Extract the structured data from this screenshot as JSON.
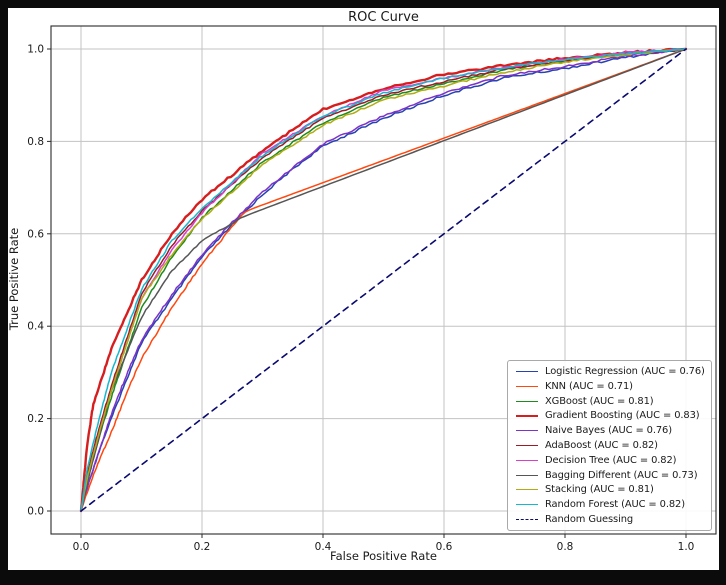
{
  "figure": {
    "title": "ROC Curve",
    "xlabel": "False Positive Rate",
    "ylabel": "True Positive Rate",
    "background": "#ffffff",
    "frame_color": "#0b0b0b",
    "grid_color": "#c3c3c3",
    "spine_color": "#2b2b2b",
    "tick_text_color": "#1a1a1a",
    "x_ticks": [
      "0.0",
      "0.2",
      "0.4",
      "0.6",
      "0.8",
      "1.0"
    ],
    "y_ticks": [
      "0.0",
      "0.2",
      "0.4",
      "0.6",
      "0.8",
      "1.0"
    ]
  },
  "chart_data": {
    "type": "line",
    "title": "ROC Curve",
    "xlabel": "False Positive Rate",
    "ylabel": "True Positive Rate",
    "xlim": [
      -0.05,
      1.05
    ],
    "ylim": [
      -0.05,
      1.05
    ],
    "grid": true,
    "legend_position": "lower right",
    "series": [
      {
        "name": "Logistic Regression",
        "auc": 0.76,
        "label": "Logistic Regression (AUC = 0.76)",
        "color": "#2743b0",
        "linewidth": 1.5,
        "dash": false,
        "jitter": 1.0,
        "jitter_until": 1.0,
        "points": [
          [
            0,
            0
          ],
          [
            0.01,
            0.05
          ],
          [
            0.03,
            0.13
          ],
          [
            0.05,
            0.2
          ],
          [
            0.08,
            0.3
          ],
          [
            0.1,
            0.365
          ],
          [
            0.15,
            0.46
          ],
          [
            0.2,
            0.55
          ],
          [
            0.25,
            0.62
          ],
          [
            0.3,
            0.685
          ],
          [
            0.35,
            0.74
          ],
          [
            0.4,
            0.79
          ],
          [
            0.5,
            0.85
          ],
          [
            0.6,
            0.9
          ],
          [
            0.7,
            0.938
          ],
          [
            0.8,
            0.958
          ],
          [
            0.9,
            0.982
          ],
          [
            1,
            1
          ]
        ]
      },
      {
        "name": "KNN",
        "auc": 0.71,
        "label": "KNN (AUC = 0.71)",
        "color": "#ff470e",
        "linewidth": 1.5,
        "dash": false,
        "jitter": 0.9,
        "jitter_until": 0.27,
        "points": [
          [
            0,
            0
          ],
          [
            0.01,
            0.04
          ],
          [
            0.03,
            0.11
          ],
          [
            0.05,
            0.17
          ],
          [
            0.08,
            0.27
          ],
          [
            0.1,
            0.33
          ],
          [
            0.15,
            0.44
          ],
          [
            0.2,
            0.535
          ],
          [
            0.24,
            0.6
          ],
          [
            0.27,
            0.648
          ],
          [
            1,
            1
          ]
        ]
      },
      {
        "name": "XGBoost",
        "auc": 0.81,
        "label": "XGBoost (AUC = 0.81)",
        "color": "#1f8b1f",
        "linewidth": 1.5,
        "dash": false,
        "jitter": 1.0,
        "jitter_until": 1.0,
        "points": [
          [
            0,
            0
          ],
          [
            0.01,
            0.07
          ],
          [
            0.03,
            0.16
          ],
          [
            0.05,
            0.245
          ],
          [
            0.1,
            0.44
          ],
          [
            0.15,
            0.55
          ],
          [
            0.2,
            0.635
          ],
          [
            0.3,
            0.755
          ],
          [
            0.4,
            0.84
          ],
          [
            0.5,
            0.895
          ],
          [
            0.6,
            0.925
          ],
          [
            0.7,
            0.955
          ],
          [
            0.8,
            0.975
          ],
          [
            0.9,
            0.99
          ],
          [
            1,
            1
          ]
        ]
      },
      {
        "name": "Gradient Boosting",
        "auc": 0.83,
        "label": "Gradient Boosting (AUC = 0.83)",
        "color": "#d61e1e",
        "linewidth": 2.4,
        "dash": false,
        "jitter": 1.1,
        "jitter_until": 1.0,
        "points": [
          [
            0,
            0
          ],
          [
            0.01,
            0.14
          ],
          [
            0.02,
            0.23
          ],
          [
            0.05,
            0.35
          ],
          [
            0.1,
            0.5
          ],
          [
            0.15,
            0.6
          ],
          [
            0.2,
            0.675
          ],
          [
            0.3,
            0.78
          ],
          [
            0.4,
            0.87
          ],
          [
            0.5,
            0.915
          ],
          [
            0.6,
            0.945
          ],
          [
            0.7,
            0.965
          ],
          [
            0.8,
            0.98
          ],
          [
            0.9,
            0.992
          ],
          [
            1,
            1
          ]
        ]
      },
      {
        "name": "Naive Bayes",
        "auc": 0.76,
        "label": "Naive Bayes (AUC = 0.76)",
        "color": "#7d32c8",
        "linewidth": 1.5,
        "dash": false,
        "jitter": 1.0,
        "jitter_until": 1.0,
        "points": [
          [
            0,
            0
          ],
          [
            0.01,
            0.05
          ],
          [
            0.03,
            0.13
          ],
          [
            0.05,
            0.21
          ],
          [
            0.08,
            0.31
          ],
          [
            0.1,
            0.37
          ],
          [
            0.15,
            0.468
          ],
          [
            0.2,
            0.555
          ],
          [
            0.25,
            0.625
          ],
          [
            0.3,
            0.69
          ],
          [
            0.4,
            0.795
          ],
          [
            0.5,
            0.855
          ],
          [
            0.6,
            0.905
          ],
          [
            0.7,
            0.943
          ],
          [
            0.8,
            0.962
          ],
          [
            0.9,
            0.985
          ],
          [
            1,
            1
          ]
        ]
      },
      {
        "name": "AdaBoost",
        "auc": 0.82,
        "label": "AdaBoost (AUC = 0.82)",
        "color": "#9c1c26",
        "linewidth": 1.5,
        "dash": false,
        "jitter": 0.9,
        "jitter_until": 1.0,
        "points": [
          [
            0,
            0
          ],
          [
            0.01,
            0.08
          ],
          [
            0.03,
            0.18
          ],
          [
            0.05,
            0.27
          ],
          [
            0.1,
            0.47
          ],
          [
            0.15,
            0.575
          ],
          [
            0.2,
            0.65
          ],
          [
            0.3,
            0.765
          ],
          [
            0.4,
            0.85
          ],
          [
            0.5,
            0.9
          ],
          [
            0.6,
            0.93
          ],
          [
            0.7,
            0.957
          ],
          [
            0.8,
            0.974
          ],
          [
            0.9,
            0.99
          ],
          [
            1,
            1
          ]
        ]
      },
      {
        "name": "Decision Tree",
        "auc": 0.82,
        "label": "Decision Tree (AUC = 0.82)",
        "color": "#d840cc",
        "linewidth": 1.5,
        "dash": false,
        "jitter": 0.9,
        "jitter_until": 1.0,
        "points": [
          [
            0,
            0
          ],
          [
            0.01,
            0.07
          ],
          [
            0.03,
            0.17
          ],
          [
            0.05,
            0.26
          ],
          [
            0.1,
            0.46
          ],
          [
            0.15,
            0.565
          ],
          [
            0.2,
            0.645
          ],
          [
            0.3,
            0.775
          ],
          [
            0.4,
            0.855
          ],
          [
            0.5,
            0.91
          ],
          [
            0.6,
            0.937
          ],
          [
            0.7,
            0.96
          ],
          [
            0.8,
            0.978
          ],
          [
            0.9,
            0.992
          ],
          [
            1,
            1
          ]
        ]
      },
      {
        "name": "Bagging Different",
        "auc": 0.73,
        "label": "Bagging Different (AUC = 0.73)",
        "color": "#565656",
        "linewidth": 1.5,
        "dash": false,
        "jitter": 0.6,
        "jitter_until": 0.27,
        "points": [
          [
            0,
            0
          ],
          [
            0.01,
            0.06
          ],
          [
            0.03,
            0.16
          ],
          [
            0.05,
            0.26
          ],
          [
            0.1,
            0.42
          ],
          [
            0.15,
            0.52
          ],
          [
            0.2,
            0.585
          ],
          [
            0.24,
            0.615
          ],
          [
            0.27,
            0.638
          ],
          [
            1,
            1
          ]
        ]
      },
      {
        "name": "Stacking",
        "auc": 0.81,
        "label": "Stacking (AUC = 0.81)",
        "color": "#b2ab14",
        "linewidth": 1.5,
        "dash": false,
        "jitter": 0.9,
        "jitter_until": 1.0,
        "points": [
          [
            0,
            0
          ],
          [
            0.01,
            0.07
          ],
          [
            0.03,
            0.17
          ],
          [
            0.05,
            0.26
          ],
          [
            0.1,
            0.46
          ],
          [
            0.15,
            0.555
          ],
          [
            0.2,
            0.632
          ],
          [
            0.3,
            0.75
          ],
          [
            0.4,
            0.835
          ],
          [
            0.5,
            0.89
          ],
          [
            0.6,
            0.92
          ],
          [
            0.7,
            0.95
          ],
          [
            0.8,
            0.972
          ],
          [
            0.9,
            0.988
          ],
          [
            1,
            1
          ]
        ]
      },
      {
        "name": "Random Forest",
        "auc": 0.82,
        "label": "Random Forest (AUC = 0.82)",
        "color": "#16b8ce",
        "linewidth": 1.5,
        "dash": false,
        "jitter": 0.9,
        "jitter_until": 1.0,
        "points": [
          [
            0,
            0
          ],
          [
            0.01,
            0.09
          ],
          [
            0.03,
            0.2
          ],
          [
            0.05,
            0.3
          ],
          [
            0.1,
            0.48
          ],
          [
            0.15,
            0.585
          ],
          [
            0.2,
            0.655
          ],
          [
            0.3,
            0.77
          ],
          [
            0.4,
            0.855
          ],
          [
            0.5,
            0.905
          ],
          [
            0.6,
            0.937
          ],
          [
            0.7,
            0.96
          ],
          [
            0.8,
            0.977
          ],
          [
            0.9,
            0.99
          ],
          [
            1,
            1
          ]
        ]
      },
      {
        "name": "Random Guessing",
        "auc": null,
        "label": "Random Guessing",
        "color": "#0a0a70",
        "linewidth": 1.6,
        "dash": true,
        "jitter": 0,
        "jitter_until": 0,
        "points": [
          [
            0,
            0
          ],
          [
            1,
            1
          ]
        ]
      }
    ]
  }
}
